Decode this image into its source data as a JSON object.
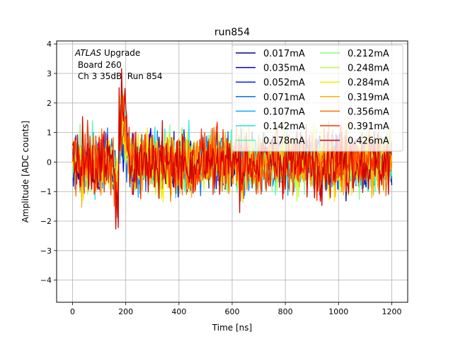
{
  "chart_data": {
    "type": "line",
    "title": "run854",
    "xlabel": "Time [ns]",
    "ylabel": "Amplitude [ADC counts]",
    "xlim": [
      -60,
      1260
    ],
    "ylim": [
      -4.75,
      4.1
    ],
    "xticks": [
      0,
      200,
      400,
      600,
      800,
      1000,
      1200
    ],
    "yticks": [
      -4,
      -3,
      -2,
      -1,
      0,
      1,
      2,
      3,
      4
    ],
    "grid": true,
    "legend_placement": "top-right",
    "legend_columns": 2,
    "annotation": {
      "italic": "ATLAS",
      "rest": " Upgrade",
      "line2": " Board 260",
      "line3": " Ch 3 35dB  Run 854"
    },
    "sample_spacing_ns": 3.125,
    "noise_description": "noise-like baseline ~ +/-1.5 ADC counts with a pulse feature near 160-210 ns",
    "series": [
      {
        "name": "0.017mA",
        "color": "#00008f"
      },
      {
        "name": "0.035mA",
        "color": "#0000d9"
      },
      {
        "name": "0.052mA",
        "color": "#0020ff"
      },
      {
        "name": "0.071mA",
        "color": "#0070ff"
      },
      {
        "name": "0.107mA",
        "color": "#00b0ff"
      },
      {
        "name": "0.142mA",
        "color": "#20e0f0"
      },
      {
        "name": "0.178mA",
        "color": "#40ffb8"
      },
      {
        "name": "0.212mA",
        "color": "#80ff80"
      },
      {
        "name": "0.248mA",
        "color": "#b8ff40"
      },
      {
        "name": "0.284mA",
        "color": "#f0f000"
      },
      {
        "name": "0.319mA",
        "color": "#ffb000"
      },
      {
        "name": "0.356mA",
        "color": "#ff7000"
      },
      {
        "name": "0.391mA",
        "color": "#ff3000"
      },
      {
        "name": "0.426mA",
        "color": "#d00000"
      }
    ]
  }
}
